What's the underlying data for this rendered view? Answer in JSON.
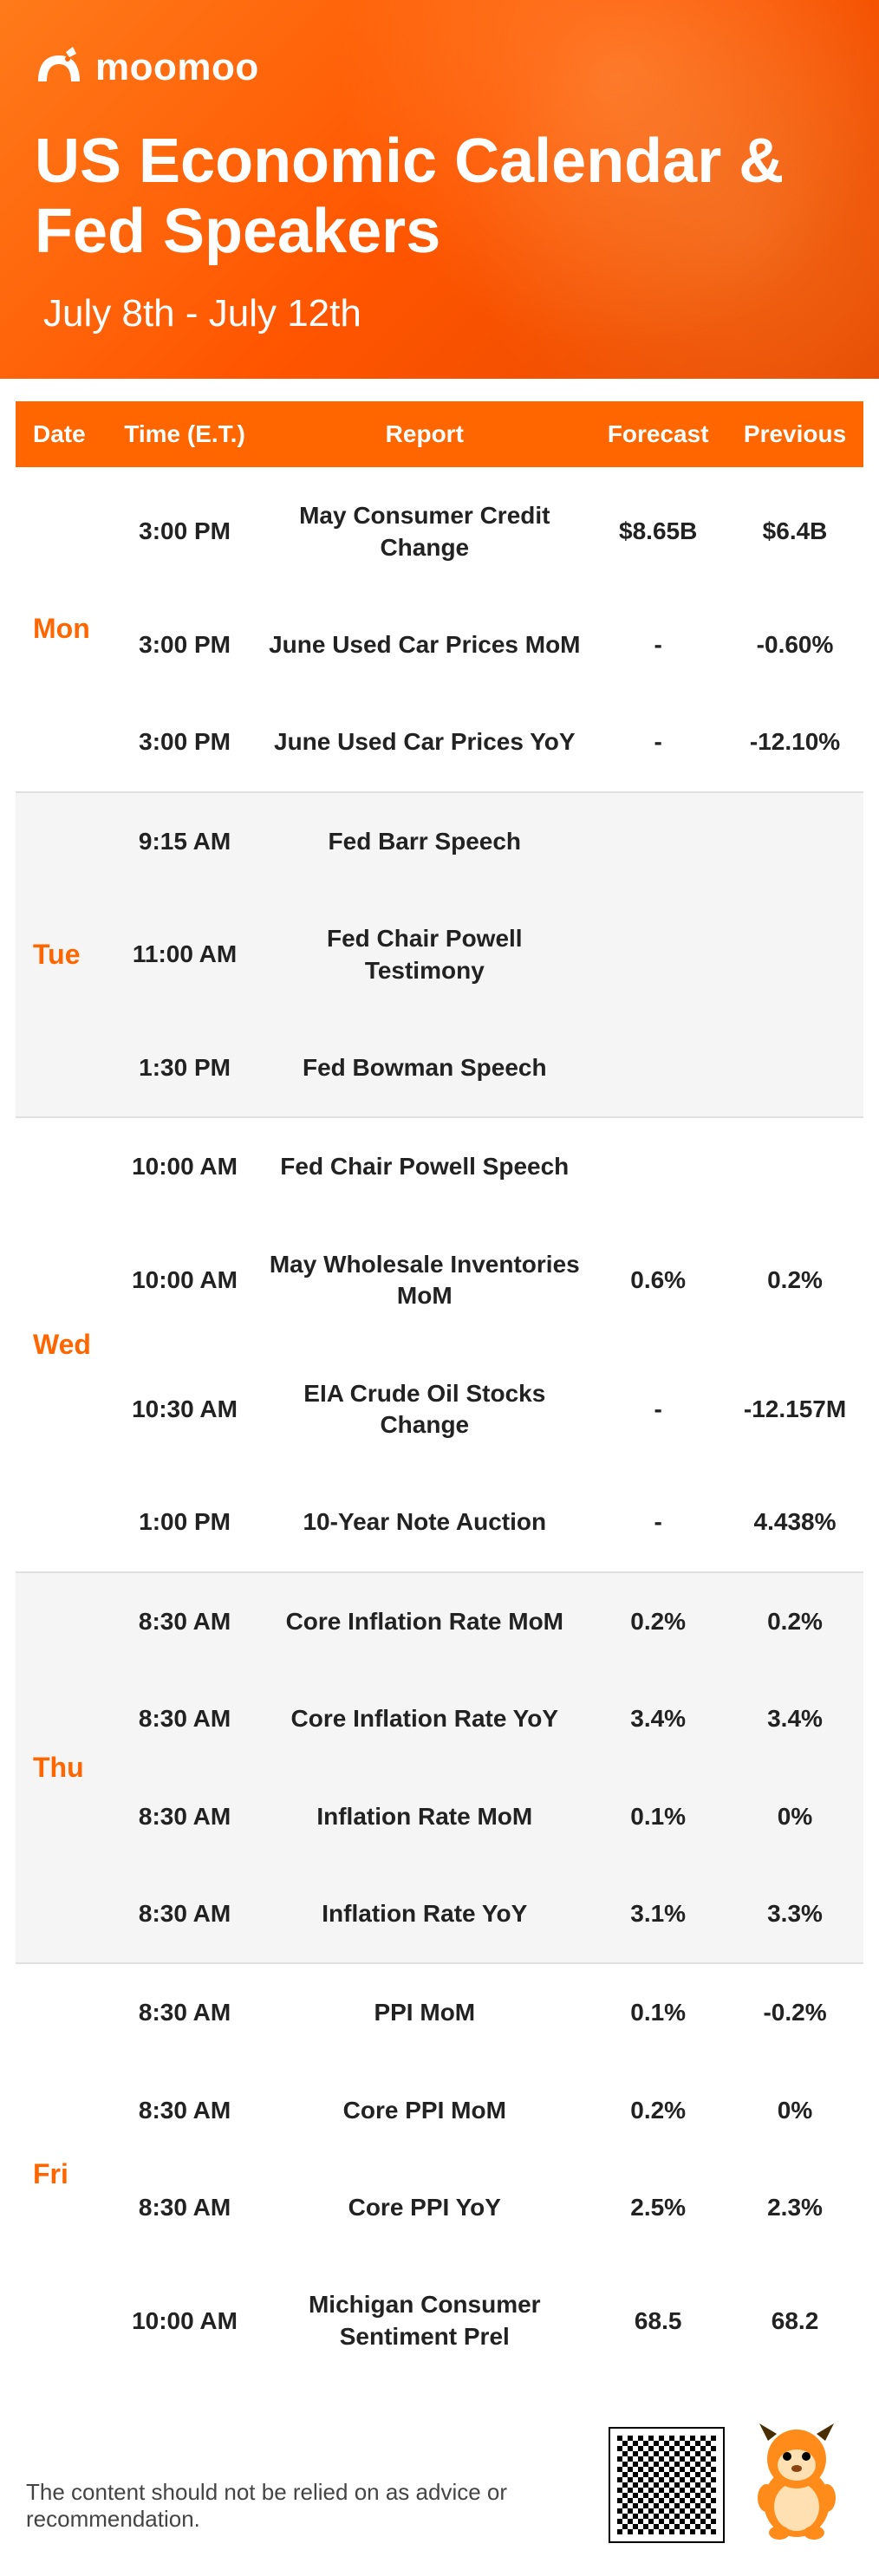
{
  "brand": {
    "name": "moomoo"
  },
  "header": {
    "title": "US Economic Calendar & Fed Speakers",
    "date_range": "July 8th - July 12th"
  },
  "colors": {
    "accent": "#ff6600",
    "header_gradient_start": "#ff7a1a",
    "header_gradient_end": "#e64a00",
    "alt_row_bg": "#f5f5f5",
    "text": "#222222",
    "white": "#ffffff"
  },
  "table": {
    "columns": [
      "Date",
      "Time (E.T.)",
      "Report",
      "Forecast",
      "Previous"
    ],
    "groups": [
      {
        "day": "Mon",
        "alt": false,
        "rows": [
          {
            "time": "3:00 PM",
            "report": "May Consumer Credit Change",
            "forecast": "$8.65B",
            "previous": "$6.4B"
          },
          {
            "time": "3:00 PM",
            "report": "June Used Car Prices MoM",
            "forecast": "-",
            "previous": "-0.60%"
          },
          {
            "time": "3:00 PM",
            "report": "June Used Car Prices YoY",
            "forecast": "-",
            "previous": "-12.10%"
          }
        ]
      },
      {
        "day": "Tue",
        "alt": true,
        "rows": [
          {
            "time": "9:15 AM",
            "report": "Fed Barr Speech",
            "forecast": "",
            "previous": ""
          },
          {
            "time": "11:00 AM",
            "report": "Fed Chair Powell Testimony",
            "forecast": "",
            "previous": ""
          },
          {
            "time": "1:30 PM",
            "report": "Fed Bowman Speech",
            "forecast": "",
            "previous": ""
          }
        ]
      },
      {
        "day": "Wed",
        "alt": false,
        "rows": [
          {
            "time": "10:00 AM",
            "report": "Fed Chair Powell Speech",
            "forecast": "",
            "previous": ""
          },
          {
            "time": "10:00 AM",
            "report": "May Wholesale Inventories MoM",
            "forecast": "0.6%",
            "previous": "0.2%"
          },
          {
            "time": "10:30 AM",
            "report": "EIA Crude Oil Stocks Change",
            "forecast": "-",
            "previous": "-12.157M"
          },
          {
            "time": "1:00 PM",
            "report": "10-Year Note Auction",
            "forecast": "-",
            "previous": "4.438%"
          }
        ]
      },
      {
        "day": "Thu",
        "alt": true,
        "rows": [
          {
            "time": "8:30 AM",
            "report": "Core Inflation Rate MoM",
            "forecast": "0.2%",
            "previous": "0.2%"
          },
          {
            "time": "8:30 AM",
            "report": "Core Inflation Rate YoY",
            "forecast": "3.4%",
            "previous": "3.4%"
          },
          {
            "time": "8:30 AM",
            "report": "Inflation Rate MoM",
            "forecast": "0.1%",
            "previous": "0%"
          },
          {
            "time": "8:30 AM",
            "report": "Inflation Rate YoY",
            "forecast": "3.1%",
            "previous": "3.3%"
          }
        ]
      },
      {
        "day": "Fri",
        "alt": false,
        "rows": [
          {
            "time": "8:30 AM",
            "report": "PPI MoM",
            "forecast": "0.1%",
            "previous": "-0.2%"
          },
          {
            "time": "8:30 AM",
            "report": "Core PPI MoM",
            "forecast": "0.2%",
            "previous": "0%"
          },
          {
            "time": "8:30 AM",
            "report": "Core PPI YoY",
            "forecast": "2.5%",
            "previous": "2.3%"
          },
          {
            "time": "10:00 AM",
            "report": "Michigan Consumer Sentiment Prel",
            "forecast": "68.5",
            "previous": "68.2"
          }
        ]
      }
    ]
  },
  "footer": {
    "disclaimer": "The content should not be relied on as advice or recommendation."
  }
}
